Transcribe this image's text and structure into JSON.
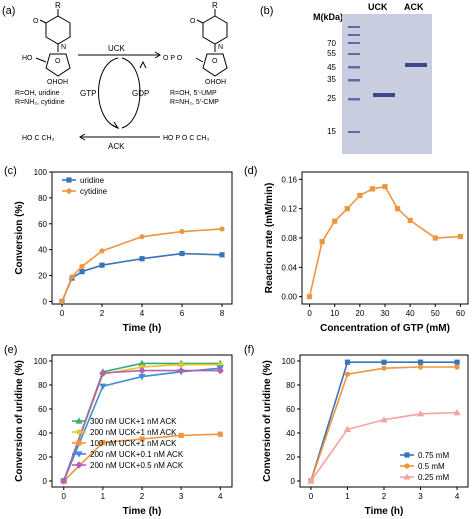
{
  "panels": {
    "a": {
      "letter": "(a)",
      "r_label": "R",
      "r_label2": "R",
      "uck": "UCK",
      "ack": "ACK",
      "gtp": "GTP",
      "gdp": "GDP",
      "sub1": "R=OH, uridine",
      "sub2": "R=NH₂, cytidine",
      "prod1": "R=OH, 5'-UMP",
      "prod2": "R=NH₂, 5'-CMP",
      "atoms": {
        "ho": "HO",
        "oh": "OH",
        "o": "O",
        "n": "N",
        "p": "P",
        "oh_oh": "OHOH",
        "ho_p": "HO",
        "c": "C",
        "ch3": "CH₃"
      }
    },
    "b": {
      "letter": "(b)",
      "mkda": "M(kDa)",
      "lane_uck": "UCK",
      "lane_ack": "ACK",
      "markers": [
        "70",
        "55",
        "45",
        "35",
        "25",
        "15"
      ]
    }
  },
  "chart_data": [
    {
      "id": "c",
      "letter": "(c)",
      "type": "line",
      "xlabel": "Time (h)",
      "ylabel": "Conversion (%)",
      "xlim": [
        -0.5,
        8.5
      ],
      "ylim": [
        -2,
        100
      ],
      "xticks": [
        "0",
        "2",
        "4",
        "6",
        "8"
      ],
      "yticks": [
        "0",
        "20",
        "40",
        "60",
        "80",
        "100"
      ],
      "legend": "top-left",
      "series": [
        {
          "name": "uridine",
          "color": "#3a74b6",
          "marker": "square",
          "x": [
            0,
            0.5,
            1,
            2,
            4,
            6,
            8
          ],
          "y": [
            0,
            18,
            23,
            28,
            33,
            37,
            36
          ]
        },
        {
          "name": "cytidine",
          "color": "#f0953f",
          "marker": "circle",
          "x": [
            0,
            0.5,
            1,
            2,
            4,
            6,
            8
          ],
          "y": [
            0,
            19,
            27,
            39,
            50,
            54,
            56
          ]
        }
      ]
    },
    {
      "id": "d",
      "letter": "(d)",
      "type": "line",
      "xlabel": "Concentration of GTP (mM)",
      "ylabel": "Reaction rate (mM/min)",
      "xlim": [
        -3,
        63
      ],
      "ylim": [
        -0.01,
        0.17
      ],
      "xticks": [
        "0",
        "10",
        "20",
        "30",
        "40",
        "50",
        "60"
      ],
      "yticks": [
        "0.00",
        "0.04",
        "0.08",
        "0.12",
        "0.16"
      ],
      "series": [
        {
          "name": "",
          "color": "#f0953f",
          "marker": "square",
          "x": [
            0,
            5,
            10,
            15,
            20,
            25,
            30,
            35,
            40,
            50,
            60
          ],
          "y": [
            0.0,
            0.075,
            0.103,
            0.12,
            0.138,
            0.147,
            0.15,
            0.12,
            0.104,
            0.08,
            0.082
          ]
        }
      ]
    },
    {
      "id": "e",
      "letter": "(e)",
      "type": "line",
      "xlabel": "Time (h)",
      "ylabel": "Conversion of uridine (%)",
      "xlim": [
        -0.3,
        4.3
      ],
      "ylim": [
        -5,
        105
      ],
      "xticks": [
        "0",
        "1",
        "2",
        "3",
        "4"
      ],
      "yticks": [
        "0",
        "20",
        "40",
        "60",
        "80",
        "100"
      ],
      "legend": "bottom-right",
      "series": [
        {
          "name": "300 nM UCK+1 nM ACK",
          "color": "#3aaa6e",
          "marker": "triangle-up",
          "x": [
            0,
            1,
            2,
            3,
            4
          ],
          "y": [
            0,
            91,
            98,
            98,
            98
          ]
        },
        {
          "name": "200 nM UCK+1 nM ACK",
          "color": "#e5c52a",
          "marker": "circle",
          "x": [
            0,
            1,
            2,
            3,
            4
          ],
          "y": [
            0,
            89,
            95,
            97,
            97
          ]
        },
        {
          "name": "100 nM UCK+1 nM ACK",
          "color": "#f0953f",
          "marker": "square",
          "x": [
            0,
            1,
            2,
            3,
            4
          ],
          "y": [
            0,
            32,
            35,
            38,
            39
          ]
        },
        {
          "name": "200 nM UCK+0.1 nM ACK",
          "color": "#3d8fd1",
          "marker": "triangle-down",
          "x": [
            0,
            1,
            2,
            3,
            4
          ],
          "y": [
            0,
            79,
            87,
            91,
            94
          ]
        },
        {
          "name": "200 nM UCK+0.5 nM ACK",
          "color": "#b062b7",
          "marker": "diamond",
          "x": [
            0,
            1,
            2,
            3,
            4
          ],
          "y": [
            0,
            90,
            92,
            92,
            92
          ]
        }
      ]
    },
    {
      "id": "f",
      "letter": "(f)",
      "type": "line",
      "xlabel": "Time (h)",
      "ylabel": "Conversion of uridine (%)",
      "xlim": [
        -0.3,
        4.3
      ],
      "ylim": [
        -5,
        105
      ],
      "xticks": [
        "0",
        "1",
        "2",
        "3",
        "4"
      ],
      "yticks": [
        "0",
        "20",
        "40",
        "60",
        "80",
        "100"
      ],
      "legend": "bottom-right",
      "series": [
        {
          "name": "0.75 mM",
          "color": "#3a74b6",
          "marker": "square",
          "x": [
            0,
            1,
            2,
            3,
            4
          ],
          "y": [
            0,
            99,
            99,
            99,
            99
          ]
        },
        {
          "name": "0.5 mM",
          "color": "#f0953f",
          "marker": "circle",
          "x": [
            0,
            1,
            2,
            3,
            4
          ],
          "y": [
            0,
            89,
            94,
            95,
            95
          ]
        },
        {
          "name": "0.25 mM",
          "color": "#f4a3a3",
          "marker": "triangle-up",
          "x": [
            0,
            1,
            2,
            3,
            4
          ],
          "y": [
            0,
            43,
            51,
            56,
            57
          ]
        }
      ]
    }
  ]
}
